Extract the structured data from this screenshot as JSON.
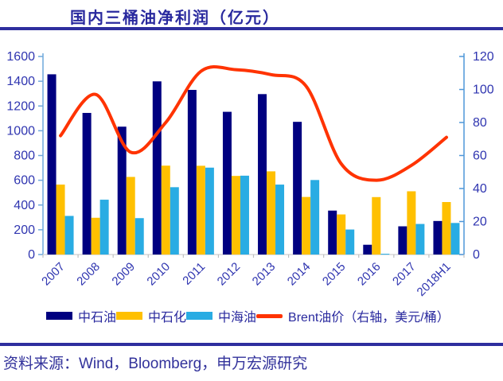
{
  "title": {
    "text": "国内三桶油净利润（亿元）"
  },
  "footer": {
    "source": "资料来源：Wind，Bloomberg，申万宏源研究"
  },
  "colors": {
    "navy_bar": "#000080",
    "yellow_bar": "#FFC000",
    "cyan_bar": "#29ACE3",
    "red_line": "#FF3300",
    "title_blue": "#29299E",
    "axis_text_blue": "#2F35B0",
    "rule_navy": "#2E2E9E",
    "left_axis": "#6FA8DC",
    "right_axis": "#4E97D9",
    "bottom_axis": "#D9D9D9",
    "bottom_ticks": "#BFBFBF"
  },
  "chart_data": {
    "type": "bar",
    "title": "国内三桶油净利润（亿元）",
    "xlabel": "",
    "ylabel": "",
    "categories": [
      "2007",
      "2008",
      "2009",
      "2010",
      "2011",
      "2012",
      "2013",
      "2014",
      "2015",
      "2016",
      "2017",
      "2018H1"
    ],
    "series": [
      {
        "id": "petrochina",
        "name": "中石油",
        "type": "bar",
        "axis": "left",
        "color": "#000080",
        "values": [
          1456,
          1144,
          1033,
          1399,
          1330,
          1153,
          1296,
          1072,
          355,
          79,
          228,
          271
        ]
      },
      {
        "id": "sinopec",
        "name": "中石化",
        "type": "bar",
        "axis": "left",
        "color": "#FFC000",
        "values": [
          565,
          297,
          627,
          718,
          717,
          635,
          672,
          465,
          324,
          464,
          511,
          424
        ]
      },
      {
        "id": "cnooc",
        "name": "中海油",
        "type": "bar",
        "axis": "left",
        "color": "#29ACE3",
        "values": [
          312,
          443,
          294,
          544,
          702,
          637,
          565,
          602,
          202,
          6,
          247,
          255
        ]
      },
      {
        "id": "brent",
        "name": "Brent油价（右轴，美元/桶）",
        "type": "line",
        "axis": "right",
        "color": "#FF3300",
        "values": [
          72,
          97,
          62,
          80,
          111,
          112,
          109,
          102,
          55,
          45,
          54,
          71
        ]
      }
    ],
    "y_left": {
      "min": 0,
      "max": 1600,
      "step": 200,
      "ticks": [
        0,
        200,
        400,
        600,
        800,
        1000,
        1200,
        1400,
        1600
      ]
    },
    "y_right": {
      "min": 0,
      "max": 120,
      "step": 20,
      "ticks": [
        0,
        20,
        40,
        60,
        80,
        100,
        120
      ]
    },
    "grid": false,
    "legend_position": "bottom"
  }
}
